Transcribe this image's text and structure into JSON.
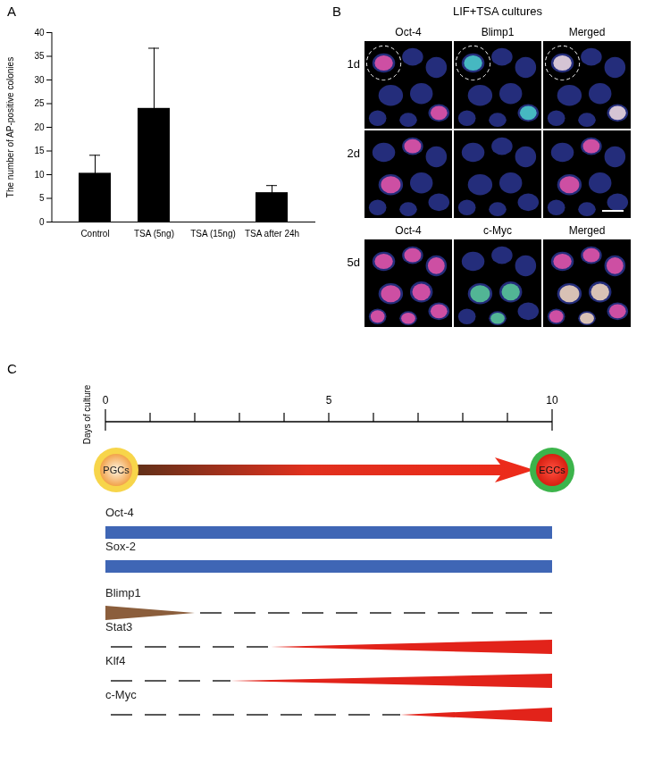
{
  "chart_data": {
    "type": "bar",
    "panel_label": "A",
    "categories": [
      "Control",
      "TSA (5ng)",
      "TSA (15ng)",
      "TSA after 24h"
    ],
    "values": [
      10.3,
      24,
      0,
      6.2
    ],
    "errors": [
      3.8,
      12.7,
      0,
      1.5
    ],
    "color": "#000000",
    "ylabel": "The number of AP-positive colonies",
    "ylim": [
      0,
      40
    ],
    "yticks": [
      0,
      5,
      10,
      15,
      20,
      25,
      30,
      35,
      40
    ],
    "grid": false
  },
  "panel_b": {
    "panel_label": "B",
    "title": "LIF+TSA cultures",
    "rows": [
      {
        "header": [
          "Oct-4",
          "Blimp1",
          "Merged"
        ],
        "label": "1d"
      },
      {
        "label": "2d"
      },
      {
        "header": [
          "Oct-4",
          "c-Myc",
          "Merged"
        ],
        "label": "5d"
      }
    ],
    "channel_colors": {
      "Oct-4": "#e8305a",
      "Blimp1": "#2fc7a0",
      "c-Myc": "#3fc23a"
    }
  },
  "panel_c": {
    "panel_label": "C",
    "axis_label": "Days of culture",
    "xlim": [
      0,
      10
    ],
    "xticks": [
      0,
      5,
      10
    ],
    "tick_marks": [
      0,
      1,
      2,
      3,
      4,
      5,
      6,
      7,
      8,
      9,
      10
    ],
    "start": "PGCs",
    "end": "EGCs",
    "rows": [
      {
        "name": "Oct-4",
        "color": "#3f66b5",
        "segments": [
          {
            "shape": "bar",
            "from": 0,
            "to": 10
          }
        ]
      },
      {
        "name": "Sox-2",
        "color": "#3f66b5",
        "segments": [
          {
            "shape": "bar",
            "from": 0,
            "to": 10
          }
        ]
      },
      {
        "name": "Blimp1",
        "color": "#8b5e3c",
        "segments": [
          {
            "shape": "falling",
            "from": 0,
            "to": 2
          },
          {
            "shape": "dashed",
            "from": 2,
            "to": 10
          }
        ]
      },
      {
        "name": "Stat3",
        "color": "#e2231a",
        "segments": [
          {
            "shape": "dashed",
            "from": 0,
            "to": 3.7
          },
          {
            "shape": "rising",
            "from": 3.7,
            "to": 10
          }
        ]
      },
      {
        "name": "Klf4",
        "color": "#e2231a",
        "segments": [
          {
            "shape": "dashed",
            "from": 0,
            "to": 2.8
          },
          {
            "shape": "rising",
            "from": 2.8,
            "to": 10
          }
        ]
      },
      {
        "name": "c-Myc",
        "color": "#e2231a",
        "segments": [
          {
            "shape": "dashed",
            "from": 0,
            "to": 6.6
          },
          {
            "shape": "rising",
            "from": 6.6,
            "to": 10
          }
        ]
      }
    ]
  }
}
